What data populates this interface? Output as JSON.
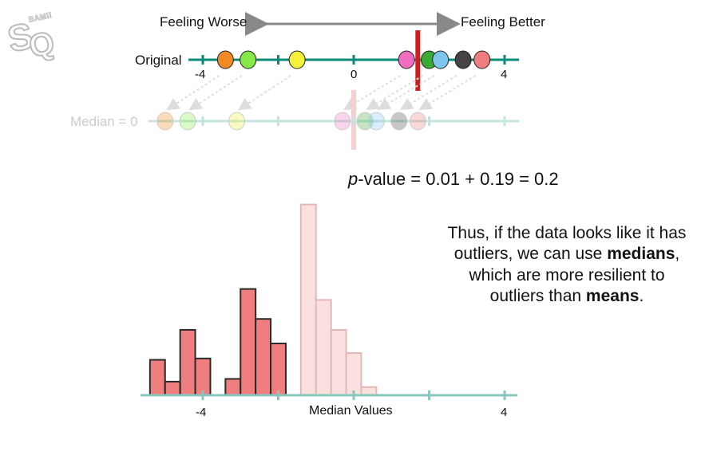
{
  "logo": {
    "text": "StatQuest BAM!!!"
  },
  "direction": {
    "left_label": "Feeling Worse",
    "right_label": "Feeling Better"
  },
  "original_line": {
    "label": "Original",
    "ticks": [
      "-4",
      "0",
      "4"
    ],
    "points": [
      {
        "value": -3.4,
        "color": "#f08a24"
      },
      {
        "value": -2.8,
        "color": "#87e84a"
      },
      {
        "value": -1.5,
        "color": "#f5f03c"
      },
      {
        "value": 1.4,
        "color": "#f06ec0"
      },
      {
        "value": 2.0,
        "color": "#3aaa35"
      },
      {
        "value": 2.3,
        "color": "#7ec6ee"
      },
      {
        "value": 2.9,
        "color": "#444444"
      },
      {
        "value": 3.4,
        "color": "#f07e7e"
      }
    ],
    "observed_marker": {
      "value": 1.7,
      "color": "#cc1f1f"
    }
  },
  "median_line": {
    "label": "Median = 0",
    "points": [
      {
        "value": -5.0,
        "color": "#f08a24"
      },
      {
        "value": -4.4,
        "color": "#87e84a"
      },
      {
        "value": -3.1,
        "color": "#f5f03c"
      },
      {
        "value": -0.3,
        "color": "#f06ec0"
      },
      {
        "value": 0.3,
        "color": "#3aaa35"
      },
      {
        "value": 0.6,
        "color": "#7ec6ee"
      },
      {
        "value": 1.2,
        "color": "#444444"
      },
      {
        "value": 1.7,
        "color": "#f07e7e"
      }
    ],
    "center_marker_color": "#f5d0d0"
  },
  "pvalue": {
    "prefix": "p",
    "rest": "-value = 0.01 + 0.19 = 0.2"
  },
  "summary": {
    "part1": "Thus, if the data looks like it has outliers, we can use ",
    "bold1": "medians",
    "part2": ", which are more resilient to outliers than ",
    "bold2": "means",
    "part3": "."
  },
  "chart_data": {
    "type": "bar",
    "title": "",
    "xlabel": "Median Values",
    "ylabel": "",
    "xticks": [
      "-4",
      "4"
    ],
    "xlim": [
      -5.4,
      4.4
    ],
    "ylim": [
      0,
      15
    ],
    "bin_width": 0.4,
    "series": [
      {
        "bins": [
          {
            "x": -5.4,
            "height": 2.6
          },
          {
            "x": -5.0,
            "height": 1.0
          },
          {
            "x": -4.6,
            "height": 4.8
          },
          {
            "x": -4.2,
            "height": 2.7
          },
          {
            "x": -3.4,
            "height": 1.2
          },
          {
            "x": -3.0,
            "height": 7.8
          },
          {
            "x": -2.6,
            "height": 5.6
          },
          {
            "x": -2.2,
            "height": 3.8
          }
        ],
        "color": "#f07e7e"
      },
      {
        "bins": [
          {
            "x": -1.4,
            "height": 14.0
          },
          {
            "x": -1.0,
            "height": 7.0
          },
          {
            "x": -0.6,
            "height": 4.8
          },
          {
            "x": -0.2,
            "height": 3.1
          },
          {
            "x": 0.2,
            "height": 0.6
          }
        ],
        "color": "#fbe0e0"
      }
    ],
    "axis_color": "#88c7bd"
  },
  "colors": {
    "teal": "#0a8a7a",
    "teal_faded": "#c6e4df",
    "arrow": "#888888",
    "faded_arrow": "#dddddd"
  }
}
